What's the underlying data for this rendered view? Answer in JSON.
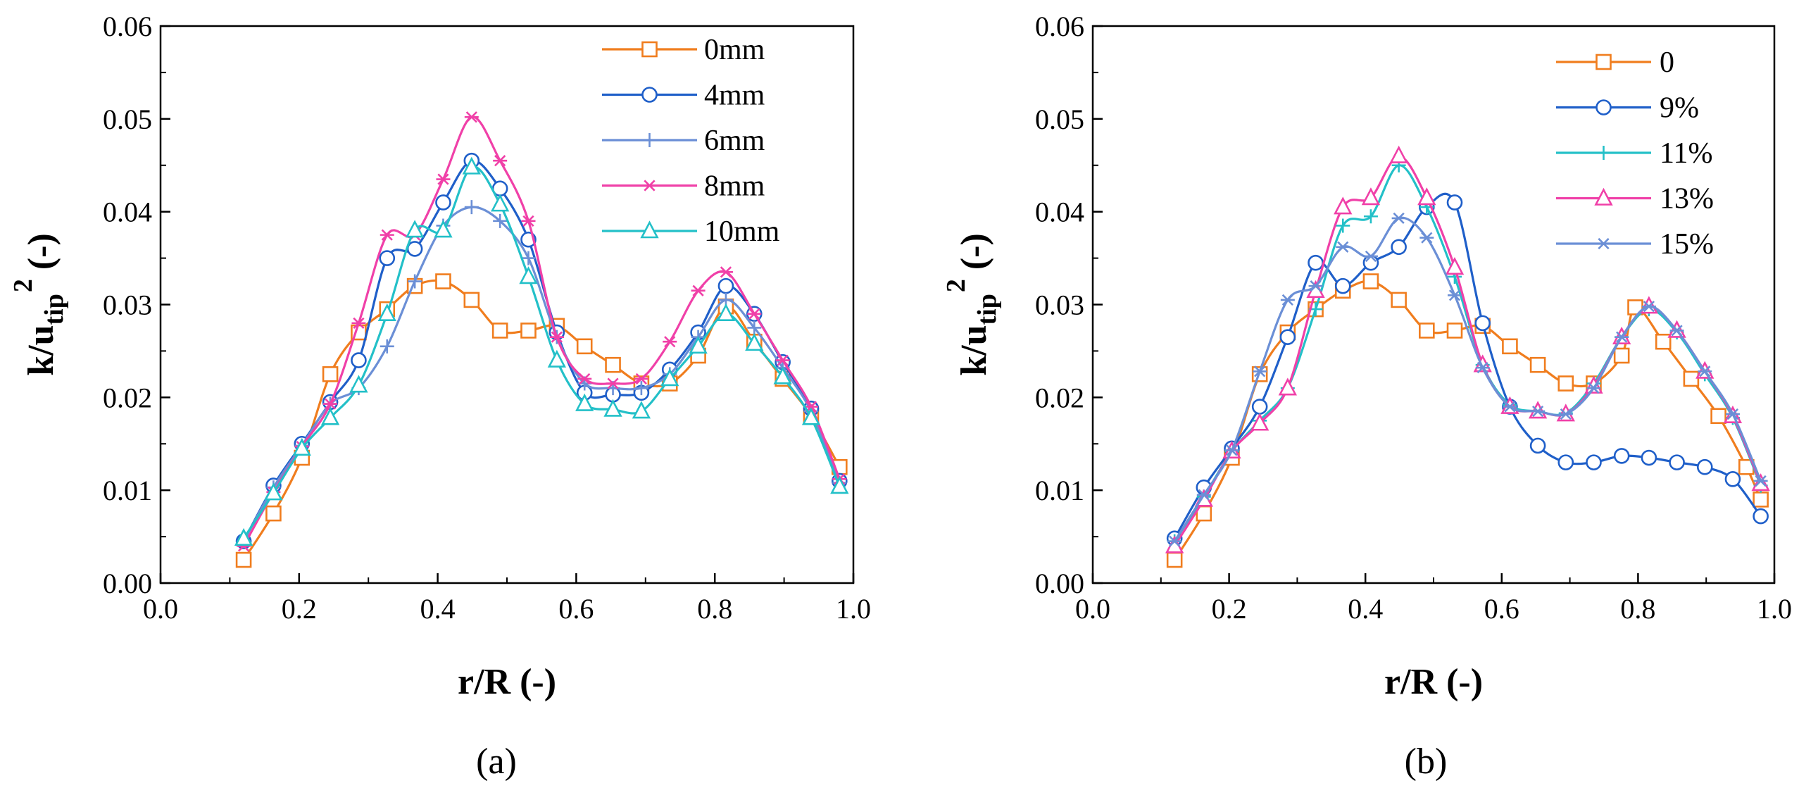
{
  "chart_data": [
    {
      "type": "line",
      "caption": "(a)",
      "xlabel": "r/R (-)",
      "ylabel": {
        "main": "k/u",
        "sub": "tip",
        "sup": "2",
        "tail": " (-)"
      },
      "xlim": [
        0.0,
        1.0
      ],
      "ylim": [
        0.0,
        0.06
      ],
      "xticks": [
        0.0,
        0.2,
        0.4,
        0.6,
        0.8,
        1.0
      ],
      "xtick_labels": [
        "0.0",
        "0.2",
        "0.4",
        "0.6",
        "0.8",
        "1.0"
      ],
      "yticks": [
        0.0,
        0.01,
        0.02,
        0.03,
        0.04,
        0.05,
        0.06
      ],
      "ytick_labels": [
        "0.00",
        "0.01",
        "0.02",
        "0.03",
        "0.04",
        "0.05",
        "0.06"
      ],
      "legend_position": "top-right",
      "x": [
        0.12,
        0.163,
        0.204,
        0.245,
        0.286,
        0.327,
        0.367,
        0.408,
        0.449,
        0.49,
        0.531,
        0.572,
        0.612,
        0.653,
        0.694,
        0.735,
        0.776,
        0.816,
        0.857,
        0.898,
        0.939,
        0.98
      ],
      "series": [
        {
          "name": "0mm",
          "color": "#f07d1e",
          "marker": "square",
          "values": [
            0.0025,
            0.0075,
            0.0135,
            0.0225,
            0.027,
            0.0295,
            0.032,
            0.0325,
            0.0305,
            0.0272,
            0.0272,
            0.0277,
            0.0255,
            0.0235,
            0.0215,
            0.0215,
            0.0245,
            0.0298,
            0.026,
            0.022,
            0.018,
            0.0125
          ]
        },
        {
          "name": "4mm",
          "color": "#1f5fc9",
          "marker": "circle",
          "values": [
            0.0045,
            0.0105,
            0.015,
            0.0195,
            0.024,
            0.035,
            0.036,
            0.041,
            0.0455,
            0.0425,
            0.037,
            0.027,
            0.0205,
            0.0203,
            0.0205,
            0.023,
            0.027,
            0.032,
            0.029,
            0.0238,
            0.0188,
            0.011
          ]
        },
        {
          "name": "6mm",
          "color": "#6b8fd6",
          "marker": "plus",
          "values": [
            0.0045,
            0.0103,
            0.0148,
            0.0193,
            0.021,
            0.0255,
            0.0325,
            0.0385,
            0.0405,
            0.039,
            0.035,
            0.0265,
            0.0215,
            0.021,
            0.021,
            0.0225,
            0.0265,
            0.0305,
            0.0275,
            0.0232,
            0.0185,
            0.0108
          ]
        },
        {
          "name": "8mm",
          "color": "#f040a8",
          "marker": "asterisk",
          "values": [
            0.004,
            0.0098,
            0.0147,
            0.0193,
            0.028,
            0.0375,
            0.0375,
            0.0435,
            0.0502,
            0.0455,
            0.039,
            0.0265,
            0.022,
            0.0215,
            0.022,
            0.026,
            0.0315,
            0.0335,
            0.029,
            0.024,
            0.019,
            0.0112
          ]
        },
        {
          "name": "10mm",
          "color": "#23c0c8",
          "marker": "triangle",
          "values": [
            0.0048,
            0.0097,
            0.0145,
            0.0178,
            0.0213,
            0.029,
            0.038,
            0.038,
            0.0448,
            0.0408,
            0.033,
            0.024,
            0.0193,
            0.0187,
            0.0185,
            0.022,
            0.0255,
            0.029,
            0.0258,
            0.0222,
            0.0178,
            0.0104
          ]
        }
      ],
      "legend": [
        "0mm",
        "4mm",
        "6mm",
        "8mm",
        "10mm"
      ]
    },
    {
      "type": "line",
      "caption": "(b)",
      "xlabel": "r/R (-)",
      "ylabel": {
        "main": "k/u",
        "sub": "tip",
        "sup": "2",
        "tail": " (-)"
      },
      "xlim": [
        0.0,
        1.0
      ],
      "ylim": [
        0.0,
        0.06
      ],
      "xticks": [
        0.0,
        0.2,
        0.4,
        0.6,
        0.8,
        1.0
      ],
      "xtick_labels": [
        "0.0",
        "0.2",
        "0.4",
        "0.6",
        "0.8",
        "1.0"
      ],
      "yticks": [
        0.0,
        0.01,
        0.02,
        0.03,
        0.04,
        0.05,
        0.06
      ],
      "ytick_labels": [
        "0.00",
        "0.01",
        "0.02",
        "0.03",
        "0.04",
        "0.05",
        "0.06"
      ],
      "legend_position": "top-right",
      "series": [
        {
          "name": "0",
          "color": "#f07d1e",
          "marker": "square",
          "x": [
            0.12,
            0.163,
            0.204,
            0.245,
            0.286,
            0.327,
            0.367,
            0.408,
            0.449,
            0.49,
            0.531,
            0.572,
            0.612,
            0.653,
            0.694,
            0.735,
            0.776,
            0.796,
            0.837,
            0.878,
            0.918,
            0.959,
            0.98
          ],
          "values": [
            0.0025,
            0.0075,
            0.0135,
            0.0225,
            0.027,
            0.0295,
            0.0315,
            0.0325,
            0.0305,
            0.0272,
            0.0272,
            0.0277,
            0.0255,
            0.0235,
            0.0215,
            0.0215,
            0.0245,
            0.0297,
            0.026,
            0.022,
            0.018,
            0.0125,
            0.009
          ]
        },
        {
          "name": "9%",
          "color": "#1f5fc9",
          "marker": "circle",
          "x": [
            0.12,
            0.163,
            0.204,
            0.245,
            0.286,
            0.327,
            0.367,
            0.408,
            0.449,
            0.49,
            0.531,
            0.572,
            0.612,
            0.653,
            0.694,
            0.735,
            0.776,
            0.816,
            0.857,
            0.898,
            0.939,
            0.98
          ],
          "values": [
            0.0048,
            0.0103,
            0.0145,
            0.019,
            0.0265,
            0.0345,
            0.032,
            0.0345,
            0.0362,
            0.0405,
            0.041,
            0.028,
            0.019,
            0.0148,
            0.013,
            0.013,
            0.0137,
            0.0135,
            0.013,
            0.0125,
            0.0112,
            0.0072
          ]
        },
        {
          "name": "11%",
          "color": "#23c0c8",
          "marker": "plus",
          "x": [
            0.12,
            0.163,
            0.204,
            0.245,
            0.286,
            0.327,
            0.367,
            0.408,
            0.449,
            0.49,
            0.531,
            0.572,
            0.612,
            0.653,
            0.694,
            0.735,
            0.776,
            0.816,
            0.857,
            0.898,
            0.939,
            0.98
          ],
          "values": [
            0.0045,
            0.0093,
            0.0142,
            0.0175,
            0.021,
            0.0295,
            0.0385,
            0.0395,
            0.045,
            0.0405,
            0.033,
            0.0235,
            0.0192,
            0.0185,
            0.0183,
            0.0215,
            0.0265,
            0.0295,
            0.027,
            0.0225,
            0.0178,
            0.0105
          ]
        },
        {
          "name": "13%",
          "color": "#f040a8",
          "marker": "triangle",
          "x": [
            0.12,
            0.163,
            0.204,
            0.245,
            0.286,
            0.327,
            0.367,
            0.408,
            0.449,
            0.49,
            0.531,
            0.572,
            0.612,
            0.653,
            0.694,
            0.735,
            0.776,
            0.816,
            0.857,
            0.898,
            0.939,
            0.98
          ],
          "values": [
            0.004,
            0.009,
            0.0142,
            0.0172,
            0.021,
            0.0315,
            0.0405,
            0.0415,
            0.046,
            0.0415,
            0.034,
            0.0235,
            0.019,
            0.0185,
            0.0182,
            0.0212,
            0.0265,
            0.0298,
            0.0272,
            0.0228,
            0.018,
            0.0107
          ]
        },
        {
          "name": "15%",
          "color": "#6b8fd6",
          "marker": "asterisk",
          "x": [
            0.12,
            0.163,
            0.204,
            0.245,
            0.286,
            0.327,
            0.367,
            0.408,
            0.449,
            0.49,
            0.531,
            0.572,
            0.612,
            0.653,
            0.694,
            0.735,
            0.776,
            0.816,
            0.857,
            0.898,
            0.939,
            0.98
          ],
          "values": [
            0.0045,
            0.0095,
            0.0143,
            0.0228,
            0.0305,
            0.032,
            0.0362,
            0.0352,
            0.0393,
            0.0372,
            0.031,
            0.0232,
            0.019,
            0.0185,
            0.0182,
            0.021,
            0.0265,
            0.0298,
            0.0272,
            0.0228,
            0.0182,
            0.011
          ]
        }
      ],
      "legend": [
        "0",
        "9%",
        "11%",
        "13%",
        "15%"
      ]
    }
  ]
}
